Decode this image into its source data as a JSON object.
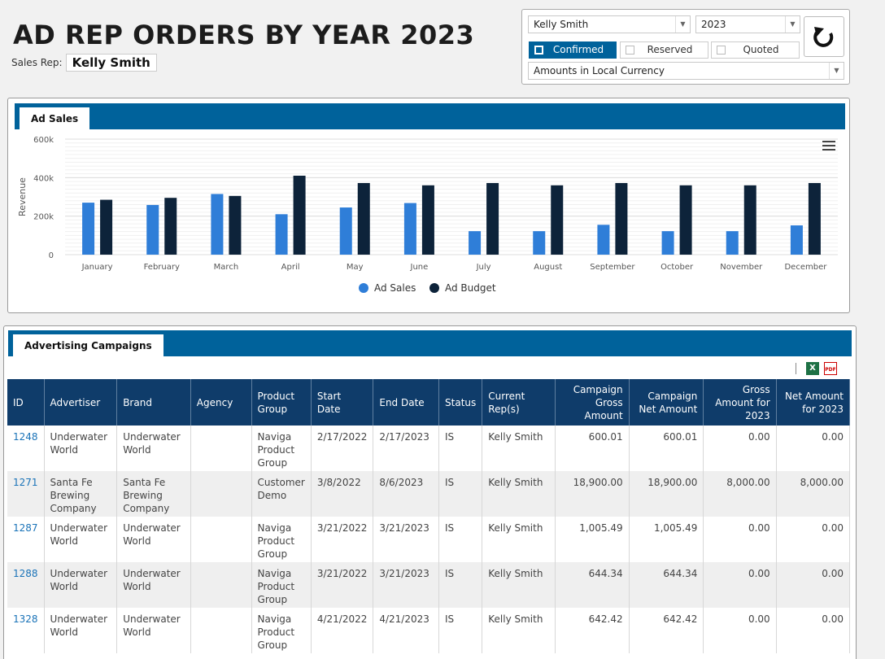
{
  "page": {
    "title": "AD REP ORDERS BY YEAR 2023",
    "sales_rep_label": "Sales Rep:",
    "sales_rep_name": "Kelly Smith"
  },
  "filters": {
    "rep_select": "Kelly Smith",
    "year_select": "2023",
    "currency_select": "Amounts in Local Currency",
    "status_toggles": [
      {
        "label": "Confirmed",
        "checked": true
      },
      {
        "label": "Reserved",
        "checked": false
      },
      {
        "label": "Quoted",
        "checked": false
      }
    ],
    "refresh_icon": "refresh-icon"
  },
  "chart_panel": {
    "tab_label": "Ad Sales"
  },
  "chart_data": {
    "type": "bar",
    "title": "",
    "xlabel": "",
    "ylabel": "Revenue",
    "ylim": [
      0,
      600000
    ],
    "yticks": [
      0,
      200000,
      400000,
      600000
    ],
    "ytick_labels": [
      "0",
      "200k",
      "400k",
      "600k"
    ],
    "categories": [
      "January",
      "February",
      "March",
      "April",
      "May",
      "June",
      "July",
      "August",
      "September",
      "October",
      "November",
      "December"
    ],
    "series": [
      {
        "name": "Ad Sales",
        "color": "#2f7ed8",
        "values": [
          270000,
          258000,
          315000,
          210000,
          245000,
          268000,
          122000,
          122000,
          155000,
          122000,
          122000,
          152000
        ]
      },
      {
        "name": "Ad Budget",
        "color": "#0d233a",
        "values": [
          285000,
          295000,
          305000,
          410000,
          372000,
          360000,
          372000,
          360000,
          372000,
          360000,
          360000,
          372000
        ]
      }
    ],
    "grid": true,
    "legend_position": "bottom-center"
  },
  "campaigns_panel": {
    "tab_label": "Advertising Campaigns",
    "export_icons": [
      "excel-icon",
      "pdf-icon"
    ],
    "excel_glyph": "X",
    "pdf_glyph": "PDF",
    "columns": [
      "ID",
      "Advertiser",
      "Brand",
      "Agency",
      "Product Group",
      "Start Date",
      "End Date",
      "Status",
      "Current Rep(s)",
      "Campaign Gross Amount",
      "Campaign Net Amount",
      "Gross Amount for 2023",
      "Net Amount for 2023"
    ],
    "rows": [
      [
        "1248",
        "Underwater World",
        "Underwater World",
        "",
        "Naviga Product Group",
        "2/17/2022",
        "2/17/2023",
        "IS",
        "Kelly Smith",
        "600.01",
        "600.01",
        "0.00",
        "0.00"
      ],
      [
        "1271",
        "Santa Fe Brewing Company",
        "Santa Fe Brewing Company",
        "",
        "Customer Demo",
        "3/8/2022",
        "8/6/2023",
        "IS",
        "Kelly Smith",
        "18,900.00",
        "18,900.00",
        "8,000.00",
        "8,000.00"
      ],
      [
        "1287",
        "Underwater World",
        "Underwater World",
        "",
        "Naviga Product Group",
        "3/21/2022",
        "3/21/2023",
        "IS",
        "Kelly Smith",
        "1,005.49",
        "1,005.49",
        "0.00",
        "0.00"
      ],
      [
        "1288",
        "Underwater World",
        "Underwater World",
        "",
        "Naviga Product Group",
        "3/21/2022",
        "3/21/2023",
        "IS",
        "Kelly Smith",
        "644.34",
        "644.34",
        "0.00",
        "0.00"
      ],
      [
        "1328",
        "Underwater World",
        "Underwater World",
        "",
        "Naviga Product Group",
        "4/21/2022",
        "4/21/2023",
        "IS",
        "Kelly Smith",
        "642.42",
        "642.42",
        "0.00",
        "0.00"
      ]
    ]
  }
}
